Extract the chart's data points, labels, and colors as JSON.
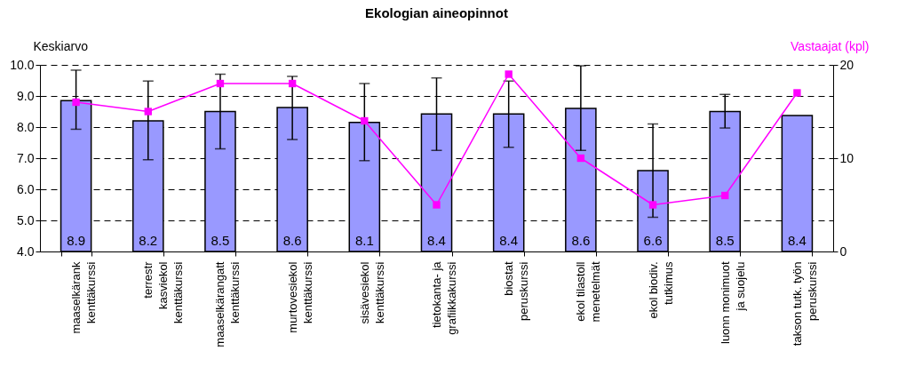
{
  "chart_data": {
    "type": "bar",
    "title": "Ekologian aineopinnot",
    "ylabel": "Keskiarvo",
    "y2label": "Vastaajat (kpl)",
    "categories": [
      "maaselkärank\nkenttäkurssi",
      "terrestr\nkasviekol\nkenttäkurssi",
      "maaselkärangatt\nkenttäkurssi",
      "murtovesiekol\nkenttäkurssi",
      "sisävesiekol\nkenttäkurssi",
      "tietokanta- ja\ngrafiikkakurssi",
      "biostat\nperuskurssi",
      "ekol tilastoll\nmenetelmät",
      "ekol biodiv.\ntutkimus",
      "luonn monimuot\nja suojelu",
      "takson tutk. työn\nperuskurssi"
    ],
    "series": [
      {
        "color": "#9999ff",
        "values": [
          8.85,
          8.2,
          8.5,
          8.63,
          8.15,
          8.42,
          8.42,
          8.6,
          6.6,
          8.5,
          8.37
        ],
        "value_labels": [
          "8.9",
          "8.2",
          "8.5",
          "8.6",
          "8.1",
          "8.4",
          "8.4",
          "8.6",
          "6.6",
          "8.5",
          "8.4"
        ],
        "errors": [
          [
            7.93,
            9.83
          ],
          [
            6.95,
            9.48
          ],
          [
            7.3,
            9.7
          ],
          [
            7.6,
            9.63
          ],
          [
            6.92,
            9.4
          ],
          [
            7.25,
            9.58
          ],
          [
            7.35,
            9.48
          ],
          [
            7.25,
            9.97
          ],
          [
            5.1,
            8.1
          ],
          [
            7.97,
            9.05
          ],
          null
        ]
      },
      {
        "type": "line",
        "axis": "y2",
        "color": "#ff00ff",
        "marker": "square",
        "values": [
          16,
          15,
          18,
          18,
          14,
          5,
          19,
          10,
          5,
          6,
          17
        ]
      }
    ],
    "ylim": [
      4,
      10
    ],
    "yticks": [
      {
        "value": 4,
        "label": "4.0"
      },
      {
        "value": 5,
        "label": "5.0"
      },
      {
        "value": 6,
        "label": "6.0"
      },
      {
        "value": 7,
        "label": "7.0"
      },
      {
        "value": 8,
        "label": "8.0"
      },
      {
        "value": 9,
        "label": "9.0"
      },
      {
        "value": 10,
        "label": "10.0"
      }
    ],
    "y2lim": [
      0,
      20
    ],
    "y2ticks": [
      0,
      10,
      20
    ],
    "grid": "y"
  }
}
